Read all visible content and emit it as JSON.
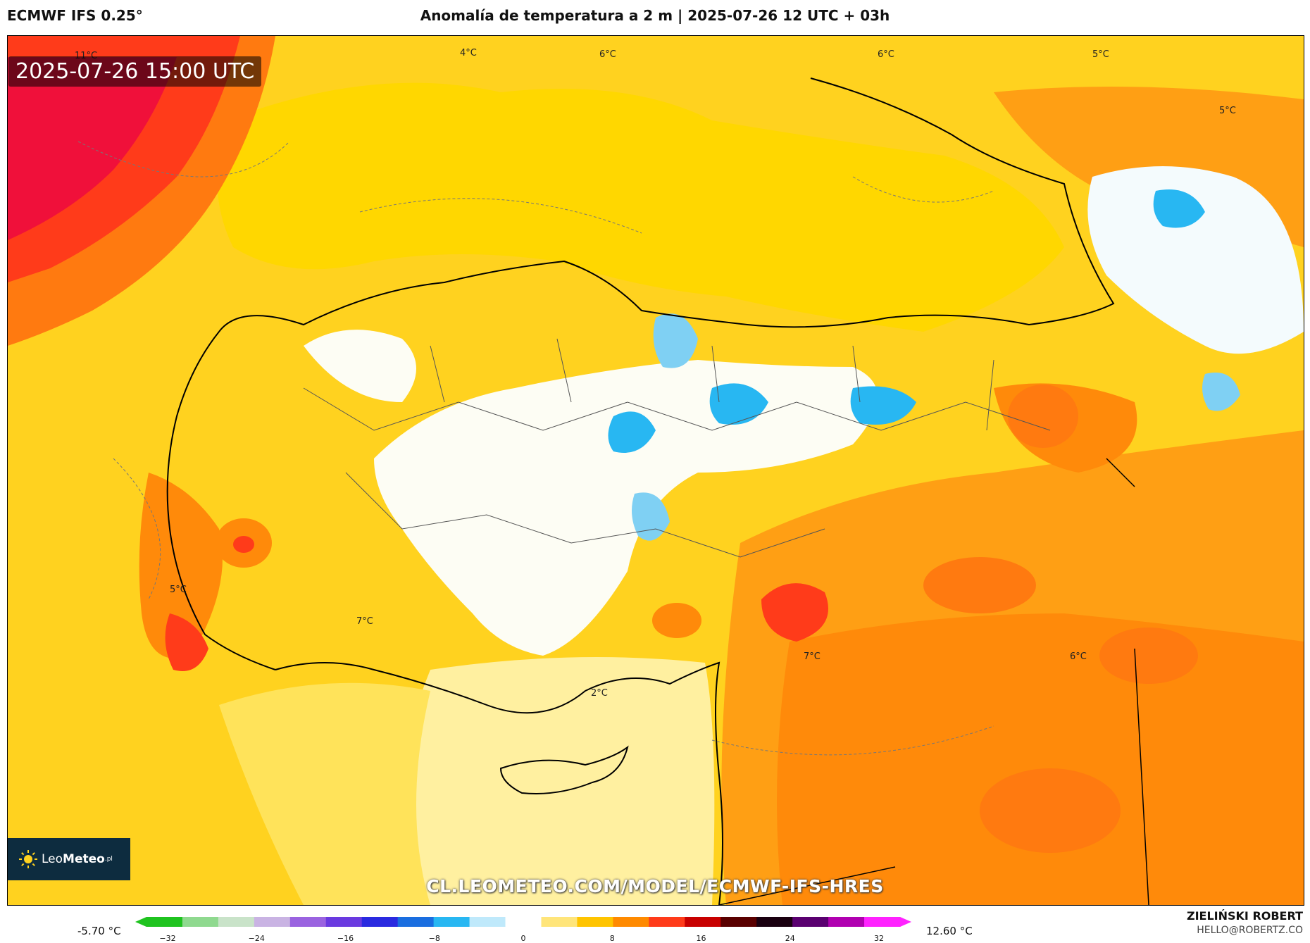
{
  "header": {
    "model_name": "ECMWF IFS 0.25°",
    "title": "Anomalía de temperatura a 2 m | 2025-07-26 12 UTC + 03h"
  },
  "map": {
    "timestamp": "2025-07-26 15:00 UTC",
    "contour_labels": [
      "11°C",
      "4°C",
      "6°C",
      "6°C",
      "5°C",
      "5°C",
      "5°C",
      "7°C",
      "7°C",
      "6°C",
      "2°C"
    ],
    "watermark": "CL.LEOMETEO.COM/MODEL/ECMWF-IFS-HRES"
  },
  "logo": {
    "text_light": "Leo",
    "text_bold": "Meteo",
    "suffix": ".pl"
  },
  "legend": {
    "min_label": "-5.70 °C",
    "max_label": "12.60 °C",
    "ticks": [
      "−32",
      "−24",
      "−16",
      "−8",
      "0",
      "8",
      "16",
      "24",
      "32"
    ],
    "colors": [
      "#1fc31f",
      "#8fd98f",
      "#c9e3c9",
      "#c9b3e3",
      "#9a63e0",
      "#6a3ae0",
      "#2a2ae0",
      "#1a6ee0",
      "#28b7f2",
      "#bfe9fb",
      "#ffffff",
      "#ffe57a",
      "#ffc400",
      "#ff8a00",
      "#ff3b1a",
      "#c80000",
      "#5a0000",
      "#1a0010",
      "#5a0070",
      "#b000b0",
      "#ff22ff"
    ]
  },
  "credits": {
    "author": "ZIELIŃSKI ROBERT",
    "email": "HELLO@ROBERTZ.CO"
  }
}
